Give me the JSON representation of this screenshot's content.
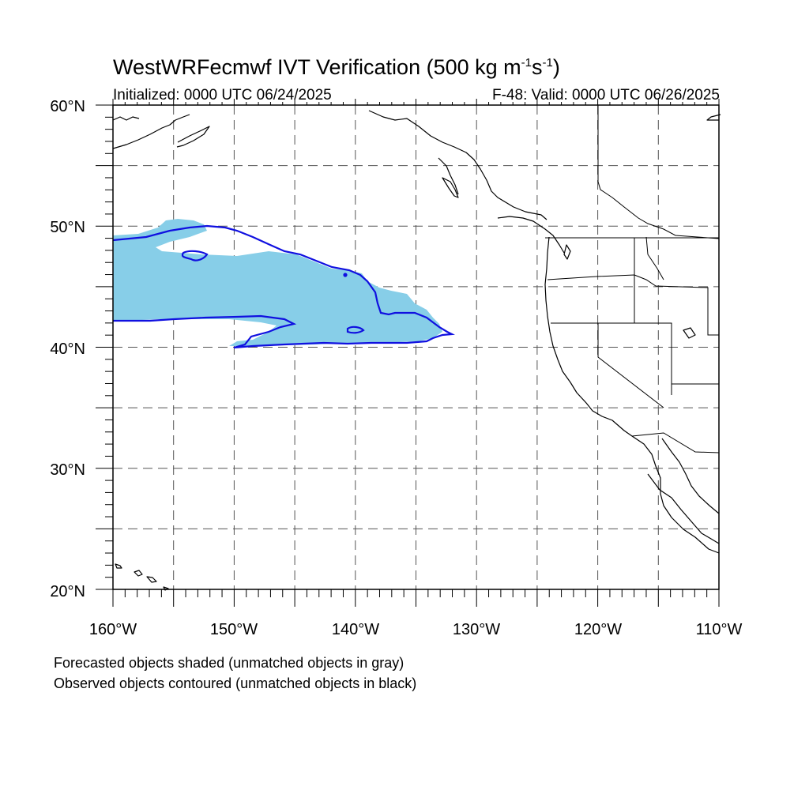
{
  "title": {
    "prefix": "WestWRFecmwf IVT Verification (500 kg m",
    "sup1": "-1",
    "mid": "s",
    "sup2": "-1",
    "suffix": ")"
  },
  "initialized": "Initialized: 0000 UTC 06/24/2025",
  "valid": "F-48: Valid: 0000 UTC 06/26/2025",
  "map": {
    "lat_range": [
      20,
      60
    ],
    "lon_range": [
      -160,
      -110
    ],
    "lat_labels": [
      "20°N",
      "30°N",
      "40°N",
      "50°N",
      "60°N"
    ],
    "lon_labels": [
      "160°W",
      "150°W",
      "140°W",
      "130°W",
      "120°W",
      "110°W"
    ],
    "gridlines": "dashed every 5 degrees",
    "forecast_fill_color": "#87CEE8",
    "observed_contour_color": "#1010E0",
    "coastline_color": "#000000"
  },
  "notes": {
    "line1": "Forecasted objects shaded (unmatched objects in gray)",
    "line2": "Observed objects contoured (unmatched objects in black)"
  }
}
